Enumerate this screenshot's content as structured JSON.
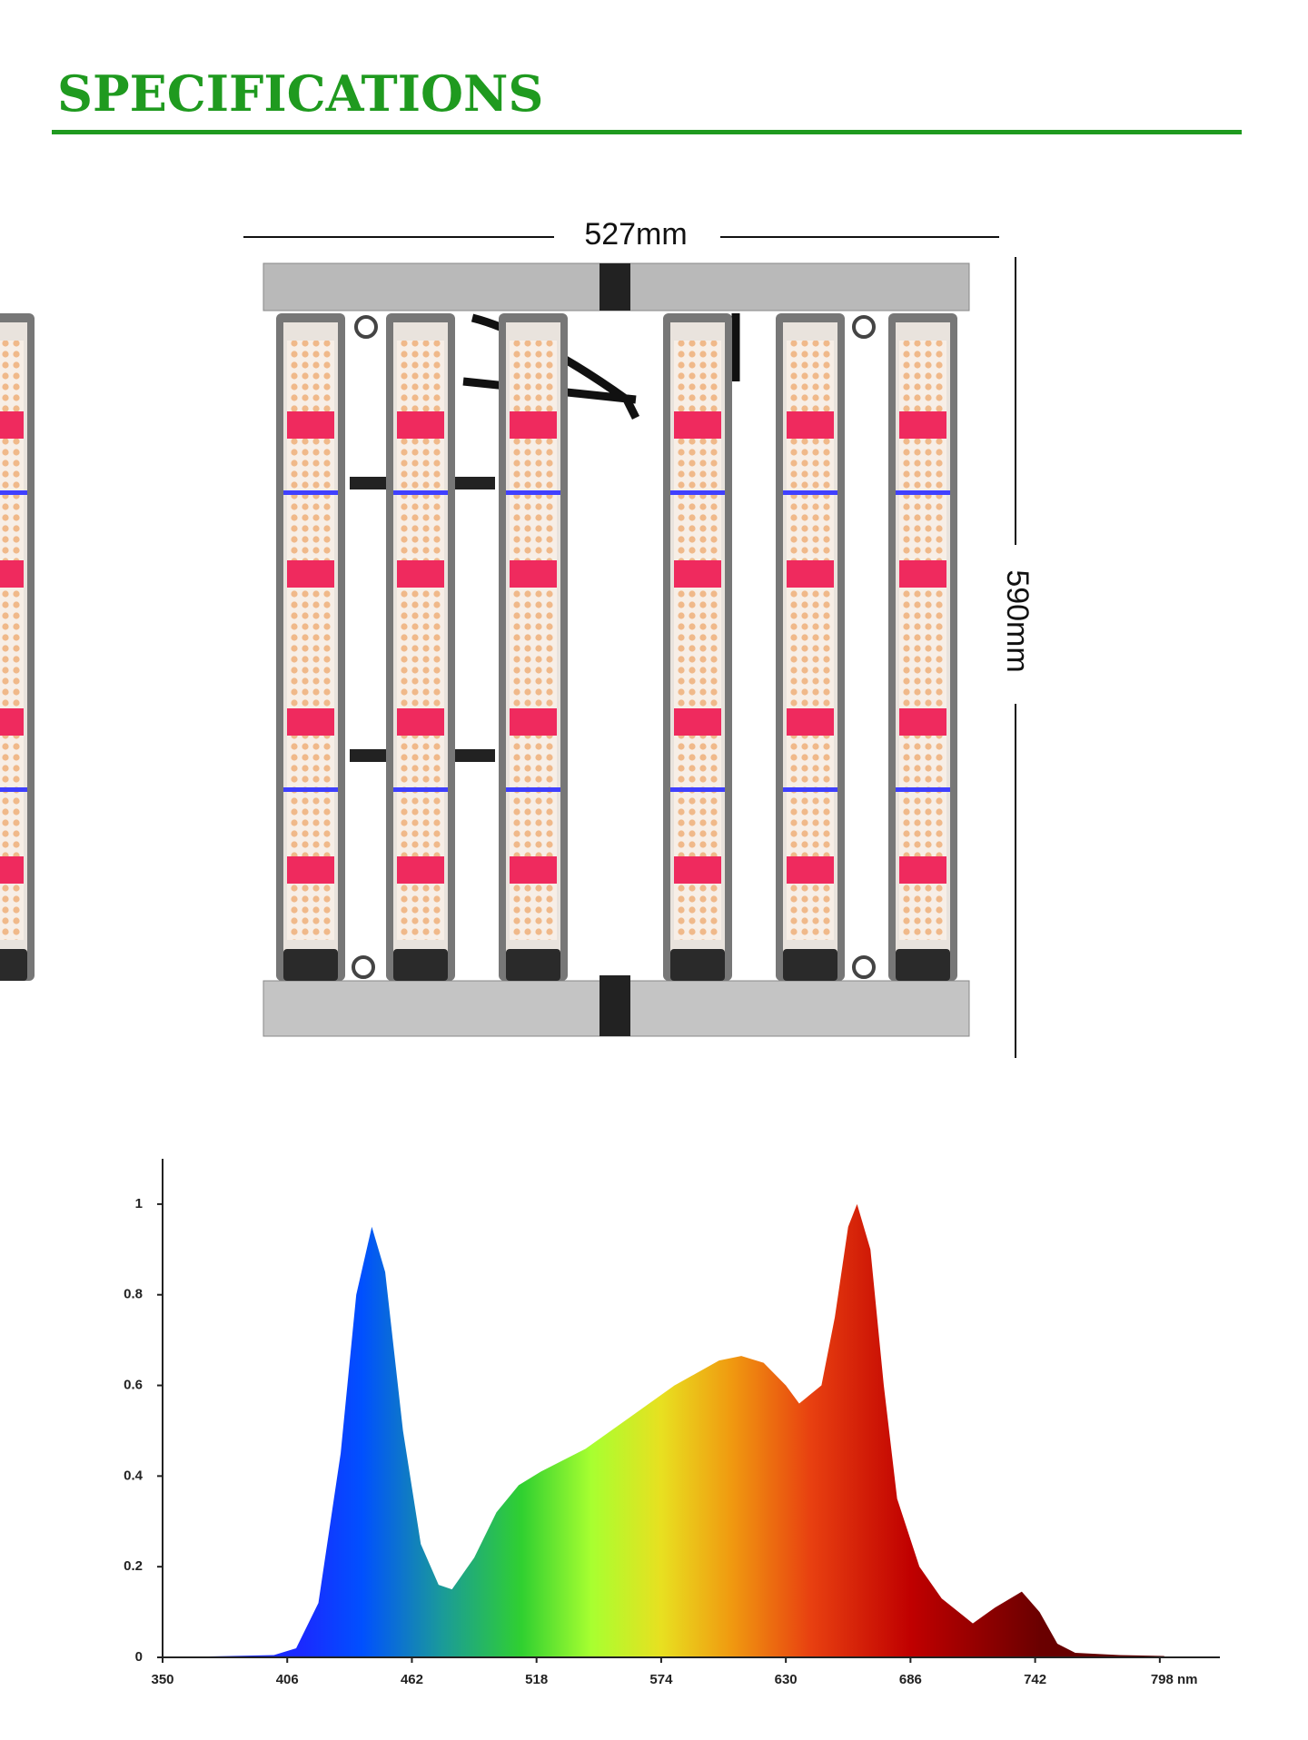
{
  "title": "SPECIFICATIONS",
  "dimensions": {
    "width": "527mm",
    "height": "590mm"
  },
  "chart_data": {
    "type": "area",
    "x": [
      350,
      400,
      410,
      420,
      430,
      437,
      444,
      450,
      458,
      466,
      474,
      480,
      490,
      500,
      510,
      520,
      540,
      560,
      580,
      600,
      610,
      620,
      630,
      636,
      646,
      652,
      658,
      662,
      668,
      674,
      680,
      690,
      700,
      714,
      724,
      736,
      744,
      752,
      760,
      780,
      800
    ],
    "values": [
      0,
      0.005,
      0.02,
      0.12,
      0.45,
      0.8,
      0.95,
      0.85,
      0.5,
      0.25,
      0.16,
      0.15,
      0.22,
      0.32,
      0.38,
      0.41,
      0.46,
      0.53,
      0.6,
      0.655,
      0.665,
      0.65,
      0.6,
      0.56,
      0.6,
      0.75,
      0.95,
      1.0,
      0.9,
      0.6,
      0.35,
      0.2,
      0.13,
      0.075,
      0.11,
      0.145,
      0.1,
      0.03,
      0.01,
      0.005,
      0.003
    ],
    "xlim": [
      350,
      825
    ],
    "xticks": [
      350,
      406,
      462,
      518,
      574,
      630,
      686,
      742,
      {
        "value": 798,
        "label": "798 nm"
      }
    ],
    "ylim": [
      0,
      1.1
    ],
    "yticks": [
      0,
      0.2,
      0.4,
      0.6,
      0.8,
      1
    ]
  }
}
